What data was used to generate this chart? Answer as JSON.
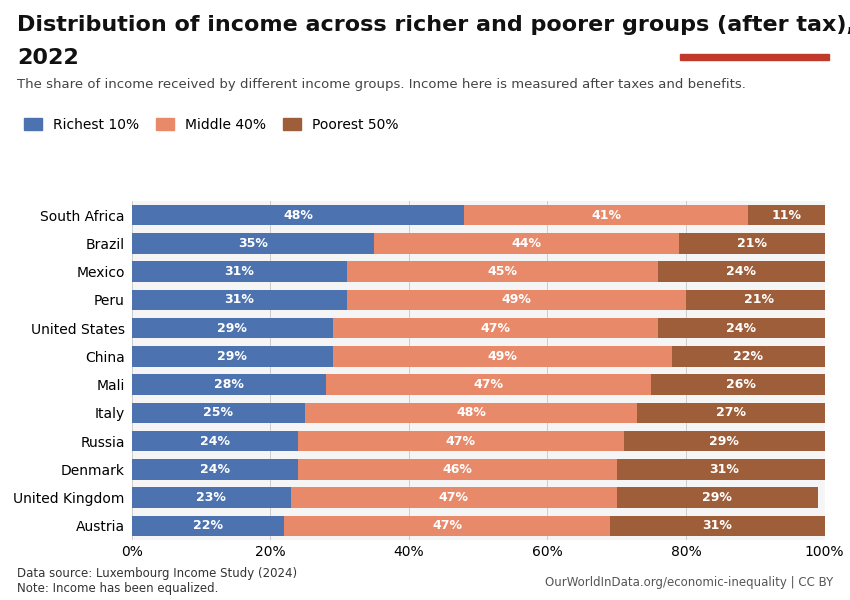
{
  "title_line1": "Distribution of income across richer and poorer groups (after tax),",
  "title_line2": "2022",
  "subtitle": "The share of income received by different income groups. Income here is measured after taxes and benefits.",
  "countries": [
    "Austria",
    "United Kingdom",
    "Denmark",
    "Russia",
    "Italy",
    "Mali",
    "China",
    "United States",
    "Peru",
    "Mexico",
    "Brazil",
    "South Africa"
  ],
  "richest10": [
    22,
    23,
    24,
    24,
    25,
    28,
    29,
    29,
    31,
    31,
    35,
    48
  ],
  "middle40": [
    47,
    47,
    46,
    47,
    48,
    47,
    49,
    47,
    49,
    45,
    44,
    41
  ],
  "poorest50": [
    31,
    29,
    31,
    29,
    27,
    26,
    22,
    24,
    21,
    24,
    21,
    11
  ],
  "color_richest": "#4C72B0",
  "color_middle": "#E8896A",
  "color_poorest": "#9E5E3A",
  "color_bg": "#ffffff",
  "color_plot_bg": "#f5f5f5",
  "data_source": "Data source: Luxembourg Income Study (2024)",
  "note": "Note: Income has been equalized.",
  "right_footer": "OurWorldInData.org/economic-inequality | CC BY",
  "legend_labels": [
    "Richest 10%",
    "Middle 40%",
    "Poorest 50%"
  ],
  "xlim": [
    0,
    100
  ],
  "bar_height": 0.72,
  "title_fontsize": 16,
  "subtitle_fontsize": 9.5,
  "tick_fontsize": 10,
  "label_fontsize": 9,
  "logo_bg": "#1a3a5c",
  "logo_red": "#c0392b"
}
